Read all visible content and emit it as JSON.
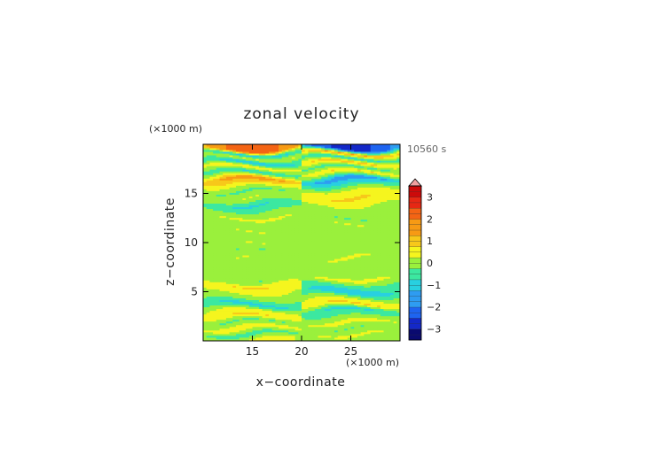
{
  "chart_data": {
    "type": "heatmap",
    "title": "zonal velocity",
    "xlabel": "x−coordinate",
    "ylabel": "z−coordinate",
    "x_unit": "(×1000 m)",
    "y_unit": "(×1000 m)",
    "time_label": "10560 s",
    "xlim": [
      10,
      30
    ],
    "ylim": [
      0,
      20
    ],
    "x_ticks": [
      "15",
      "20",
      "25"
    ],
    "y_ticks": [
      "5",
      "10",
      "15"
    ],
    "x_tick_values": [
      15,
      20,
      25
    ],
    "y_tick_values": [
      5,
      10,
      15
    ],
    "colorbar": {
      "range": [
        -3.5,
        3.5
      ],
      "step": 0.25,
      "tick_labels": [
        "3",
        "2",
        "1",
        "0",
        "−1",
        "−2",
        "−3"
      ],
      "tick_values": [
        3,
        2,
        1,
        0,
        -1,
        -2,
        -3
      ],
      "extend": "max",
      "colors": [
        "#0a0a70",
        "#1428c8",
        "#1e64f0",
        "#2e9cf2",
        "#28d0e0",
        "#3ce8a0",
        "#9af03c",
        "#f5f51e",
        "#f7c81a",
        "#f79a14",
        "#f46414",
        "#e62814",
        "#cc0a0a",
        "#f0a0a0"
      ]
    },
    "grid": false,
    "bands_left": [
      {
        "z": 19.5,
        "v": 2.2
      },
      {
        "z": 19.1,
        "v": -1.2
      },
      {
        "z": 18.7,
        "v": 0.4
      },
      {
        "z": 18.2,
        "v": -1.4
      },
      {
        "z": 17.7,
        "v": 0.8
      },
      {
        "z": 17.1,
        "v": -0.9
      },
      {
        "z": 16.4,
        "v": 1.8
      },
      {
        "z": 15.8,
        "v": 0.6
      },
      {
        "z": 15.2,
        "v": -0.4
      },
      {
        "z": 14.6,
        "v": 0.3
      },
      {
        "z": 13.9,
        "v": -0.9
      },
      {
        "z": 13.3,
        "v": -0.3
      },
      {
        "z": 12.6,
        "v": 0.4
      },
      {
        "z": 11.9,
        "v": -0.1
      },
      {
        "z": 11.2,
        "v": 0.3
      },
      {
        "z": 10.5,
        "v": -0.2
      },
      {
        "z": 9.8,
        "v": 0.3
      },
      {
        "z": 9.1,
        "v": -0.3
      },
      {
        "z": 8.4,
        "v": 0.3
      },
      {
        "z": 7.7,
        "v": -0.2
      },
      {
        "z": 7.0,
        "v": 0.2
      },
      {
        "z": 6.3,
        "v": -0.3
      },
      {
        "z": 5.7,
        "v": 0.9
      },
      {
        "z": 5.0,
        "v": 0.4
      },
      {
        "z": 4.3,
        "v": -0.2
      },
      {
        "z": 3.7,
        "v": -1.1
      },
      {
        "z": 3.1,
        "v": 0.3
      },
      {
        "z": 2.5,
        "v": 0.9
      },
      {
        "z": 1.9,
        "v": -0.4
      },
      {
        "z": 1.3,
        "v": 0.7
      },
      {
        "z": 0.7,
        "v": -0.6
      },
      {
        "z": 0.2,
        "v": 0.4
      }
    ],
    "bands_right": [
      {
        "z": 19.6,
        "v": -2.6
      },
      {
        "z": 19.1,
        "v": 1.6
      },
      {
        "z": 18.6,
        "v": -1.0
      },
      {
        "z": 18.1,
        "v": 1.2
      },
      {
        "z": 17.6,
        "v": -0.6
      },
      {
        "z": 17.1,
        "v": 0.9
      },
      {
        "z": 16.4,
        "v": -1.8
      },
      {
        "z": 15.8,
        "v": -0.6
      },
      {
        "z": 15.2,
        "v": 0.6
      },
      {
        "z": 14.6,
        "v": 0.9
      },
      {
        "z": 13.9,
        "v": 0.3
      },
      {
        "z": 13.3,
        "v": 0.2
      },
      {
        "z": 12.6,
        "v": -0.3
      },
      {
        "z": 11.9,
        "v": 0.3
      },
      {
        "z": 11.2,
        "v": -0.1
      },
      {
        "z": 10.5,
        "v": 0.2
      },
      {
        "z": 9.8,
        "v": -0.1
      },
      {
        "z": 9.1,
        "v": 0.2
      },
      {
        "z": 8.4,
        "v": 0.3
      },
      {
        "z": 7.7,
        "v": -0.2
      },
      {
        "z": 7.0,
        "v": 0.1
      },
      {
        "z": 6.3,
        "v": 0.4
      },
      {
        "z": 5.7,
        "v": -0.6
      },
      {
        "z": 5.0,
        "v": -1.3
      },
      {
        "z": 4.3,
        "v": 0.2
      },
      {
        "z": 3.7,
        "v": 1.0
      },
      {
        "z": 3.1,
        "v": -1.0
      },
      {
        "z": 2.5,
        "v": -0.3
      },
      {
        "z": 1.9,
        "v": 0.5
      },
      {
        "z": 1.3,
        "v": -0.3
      },
      {
        "z": 0.7,
        "v": 0.4
      },
      {
        "z": 0.2,
        "v": -0.2
      }
    ]
  }
}
